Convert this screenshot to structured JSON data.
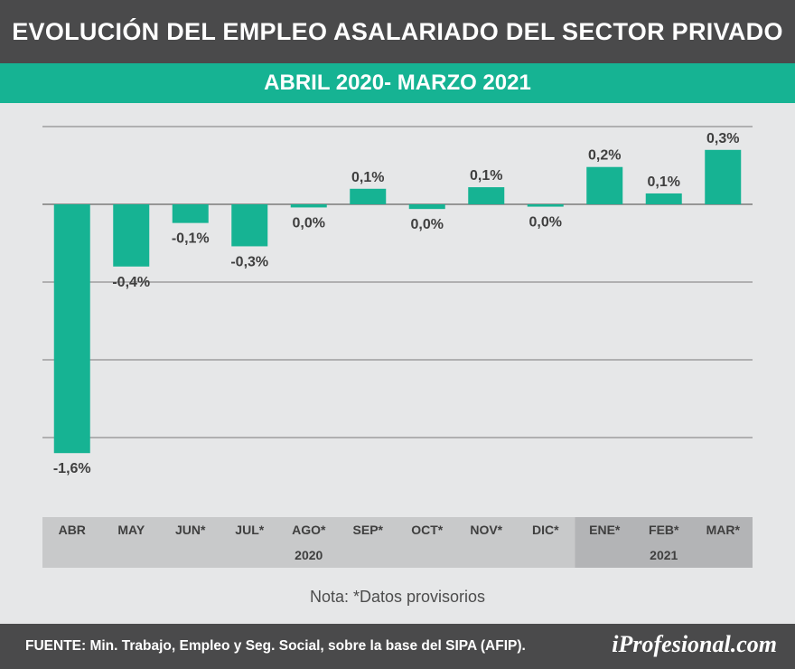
{
  "header": {
    "title": "EVOLUCIÓN DEL EMPLEO ASALARIADO DEL SECTOR PRIVADO",
    "subtitle": "ABRIL 2020- MARZO 2021"
  },
  "chart_data": {
    "type": "bar",
    "title": "EVOLUCIÓN DEL EMPLEO ASALARIADO DEL SECTOR PRIVADO",
    "subtitle": "ABRIL 2020- MARZO 2021",
    "categories": [
      "ABR",
      "MAY",
      "JUN*",
      "JUL*",
      "AGO*",
      "SEP*",
      "OCT*",
      "NOV*",
      "DIC*",
      "ENE*",
      "FEB*",
      "MAR*"
    ],
    "values": [
      -1.6,
      -0.4,
      -0.1,
      -0.3,
      0.0,
      0.1,
      0.0,
      0.1,
      0.0,
      0.2,
      0.1,
      0.3
    ],
    "bar_heights": [
      -1.6,
      -0.4,
      -0.12,
      -0.27,
      -0.02,
      0.1,
      -0.03,
      0.11,
      -0.015,
      0.24,
      0.07,
      0.35
    ],
    "value_labels": [
      "-1,6%",
      "-0,4%",
      "-0,1%",
      "-0,3%",
      "0,0%",
      "0,1%",
      "0,0%",
      "0,1%",
      "0,0%",
      "0,2%",
      "0,1%",
      "0,3%"
    ],
    "year_groups": [
      {
        "label": "2020",
        "start": 0,
        "end": 8
      },
      {
        "label": "2021",
        "start": 9,
        "end": 11
      }
    ],
    "ylim": [
      -1.75,
      0.5
    ],
    "grid_lines": [
      -1.5,
      -1.0,
      -0.5,
      0.0,
      0.5
    ],
    "xlabel": "",
    "ylabel": "",
    "bar_color": "#16b393"
  },
  "note": "Nota: *Datos provisorios",
  "footer": {
    "source": "FUENTE: Min. Trabajo, Empleo y Seg. Social, sobre la base del SIPA (AFIP).",
    "logo": "iProfesional.com"
  }
}
